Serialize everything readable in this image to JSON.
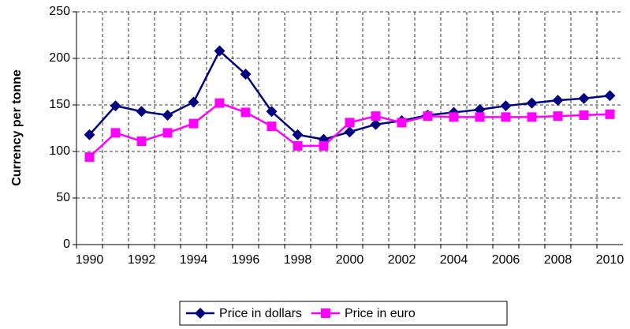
{
  "chart_data": {
    "type": "line",
    "y_label": "Currency per tonne",
    "categories": [
      "1990",
      null,
      "1992",
      null,
      "1994",
      null,
      "1996",
      null,
      "1998",
      null,
      "2000",
      null,
      "2002",
      null,
      "2004",
      null,
      "2006",
      null,
      "2008",
      null,
      "2010"
    ],
    "series": [
      {
        "name": "Price in dollars",
        "color": "#000080",
        "marker": "diamond",
        "values": [
          118,
          149,
          143,
          139,
          153,
          208,
          183,
          143,
          118,
          113,
          121,
          129,
          133,
          139,
          142,
          145,
          149,
          152,
          155,
          157,
          160
        ]
      },
      {
        "name": "Price in euro",
        "color": "#ff00ff",
        "marker": "square",
        "values": [
          94,
          120,
          111,
          120,
          130,
          152,
          142,
          127,
          106,
          106,
          131,
          138,
          131,
          138,
          137,
          137,
          137,
          137,
          138,
          139,
          140
        ]
      }
    ],
    "ylim": [
      0,
      250
    ],
    "yticks": [
      0,
      50,
      100,
      150,
      200,
      250
    ],
    "grid": true,
    "legend": "bottom"
  }
}
